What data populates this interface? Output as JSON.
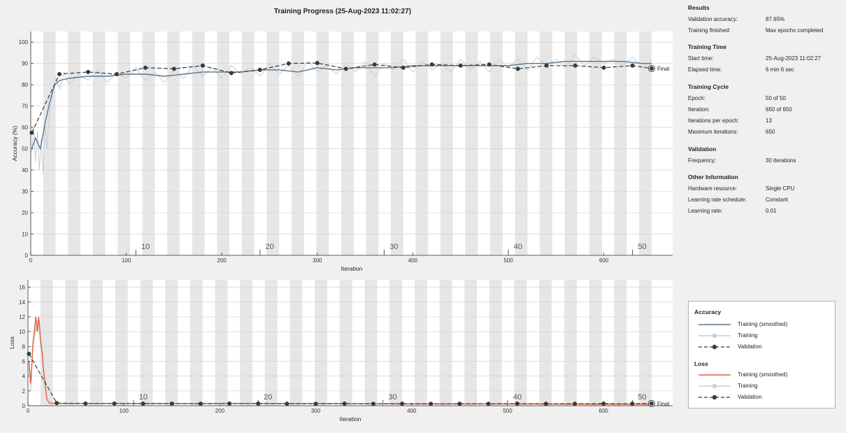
{
  "title": "Training Progress (25-Aug-2023 11:02:27)",
  "info": {
    "sections": [
      {
        "heading": "Results",
        "rows": [
          {
            "label": "Validation accuracy:",
            "value": "87.65%"
          },
          {
            "label": "Training finished:",
            "value": "Max epochs completed"
          }
        ]
      },
      {
        "heading": "Training Time",
        "rows": [
          {
            "label": "Start time:",
            "value": "25-Aug-2023 11:02:27"
          },
          {
            "label": "Elapsed time:",
            "value": "6 min 6 sec"
          }
        ]
      },
      {
        "heading": "Training Cycle",
        "rows": [
          {
            "label": "Epoch:",
            "value": "50 of 50"
          },
          {
            "label": "Iteration:",
            "value": "650 of 650"
          },
          {
            "label": "Iterations per epoch:",
            "value": "13"
          },
          {
            "label": "Maximum iterations:",
            "value": "650"
          }
        ]
      },
      {
        "heading": "Validation",
        "rows": [
          {
            "label": "Frequency:",
            "value": "30 iterations"
          }
        ]
      },
      {
        "heading": "Other Information",
        "rows": [
          {
            "label": "Hardware resource:",
            "value": "Single CPU"
          },
          {
            "label": "Learning rate schedule:",
            "value": "Constant"
          },
          {
            "label": "Learning rate:",
            "value": "0.01"
          }
        ]
      }
    ]
  },
  "legend": {
    "accuracy_title": "Accuracy",
    "loss_title": "Loss",
    "accuracy_items": [
      "Training (smoothed)",
      "Training",
      "Validation"
    ],
    "loss_items": [
      "Training (smoothed)",
      "Training",
      "Validation"
    ]
  },
  "colors": {
    "accuracy_smoothed": "#587790",
    "accuracy_raw": "#c8cdd2",
    "loss_smoothed": "#e0623a",
    "loss_raw": "#cfcfcf",
    "validation": "#3a3a3a",
    "epoch_band": "#e6e6e6"
  },
  "chart_data": [
    {
      "type": "line",
      "xlabel": "Iteration",
      "ylabel": "Accuracy (%)",
      "xlim": [
        0,
        672
      ],
      "ylim": [
        0,
        105
      ],
      "xticks": [
        0,
        100,
        200,
        300,
        400,
        500,
        600
      ],
      "yticks": [
        0,
        10,
        20,
        30,
        40,
        50,
        60,
        70,
        80,
        90,
        100
      ],
      "epoch_labels": [
        {
          "iteration": 123,
          "label": "10"
        },
        {
          "iteration": 253,
          "label": "20"
        },
        {
          "iteration": 383,
          "label": "30"
        },
        {
          "iteration": 513,
          "label": "40"
        },
        {
          "iteration": 643,
          "label": "50"
        }
      ],
      "final_label": "Final",
      "series": [
        {
          "name": "Training (smoothed)",
          "x": [
            1,
            5,
            10,
            15,
            20,
            25,
            30,
            40,
            60,
            80,
            100,
            120,
            140,
            160,
            180,
            200,
            220,
            240,
            260,
            280,
            300,
            320,
            340,
            360,
            380,
            400,
            420,
            440,
            460,
            480,
            500,
            520,
            540,
            560,
            580,
            600,
            620,
            640,
            650
          ],
          "y": [
            50,
            55,
            50,
            62,
            72,
            80,
            82,
            83,
            84,
            84,
            85,
            85,
            84,
            85,
            86,
            86,
            86,
            87,
            87,
            86,
            88,
            87,
            88,
            88,
            88,
            89,
            89,
            89,
            89,
            89,
            89,
            90,
            90,
            91,
            91,
            91,
            91,
            90,
            90
          ]
        },
        {
          "name": "Training",
          "x": [
            1,
            3,
            5,
            7,
            9,
            11,
            13,
            15,
            17,
            20,
            23,
            26,
            30,
            35,
            40,
            50,
            60,
            70,
            80,
            90,
            100,
            110,
            120,
            130,
            140,
            150,
            160,
            170,
            180,
            190,
            200,
            210,
            220,
            230,
            240,
            250,
            260,
            270,
            280,
            290,
            300,
            310,
            320,
            330,
            340,
            350,
            360,
            370,
            380,
            390,
            400,
            410,
            420,
            430,
            440,
            450,
            460,
            470,
            480,
            490,
            500,
            510,
            520,
            530,
            540,
            550,
            560,
            570,
            580,
            590,
            600,
            610,
            620,
            630,
            640,
            650
          ],
          "y": [
            48,
            60,
            44,
            58,
            40,
            55,
            38,
            62,
            50,
            68,
            76,
            84,
            78,
            86,
            80,
            85,
            82,
            87,
            81,
            86,
            83,
            88,
            82,
            86,
            81,
            87,
            83,
            89,
            84,
            88,
            83,
            89,
            85,
            88,
            84,
            90,
            85,
            89,
            84,
            91,
            86,
            89,
            85,
            90,
            86,
            91,
            84,
            90,
            87,
            92,
            86,
            91,
            87,
            90,
            86,
            92,
            87,
            91,
            86,
            92,
            88,
            92,
            87,
            93,
            89,
            92,
            88,
            94,
            89,
            93,
            90,
            92,
            89,
            93,
            88,
            91
          ]
        },
        {
          "name": "Validation",
          "x": [
            1,
            30,
            60,
            90,
            120,
            150,
            180,
            210,
            240,
            270,
            300,
            330,
            360,
            390,
            420,
            450,
            480,
            510,
            540,
            570,
            600,
            630,
            650
          ],
          "y": [
            57.5,
            85,
            86,
            85,
            88,
            87.5,
            89,
            85.5,
            87,
            90,
            90.2,
            87.5,
            89.5,
            88,
            89.5,
            89,
            89.5,
            87.5,
            89,
            89,
            88,
            89,
            87.65
          ]
        }
      ]
    },
    {
      "type": "line",
      "xlabel": "Iteration",
      "ylabel": "Loss",
      "xlim": [
        0,
        672
      ],
      "ylim": [
        0,
        17
      ],
      "xticks": [
        0,
        100,
        200,
        300,
        400,
        500,
        600
      ],
      "yticks": [
        0,
        2,
        4,
        6,
        8,
        10,
        12,
        14,
        16
      ],
      "epoch_labels": [
        {
          "iteration": 123,
          "label": "10"
        },
        {
          "iteration": 253,
          "label": "20"
        },
        {
          "iteration": 383,
          "label": "30"
        },
        {
          "iteration": 513,
          "label": "40"
        },
        {
          "iteration": 643,
          "label": "50"
        }
      ],
      "final_label": "Final",
      "series": [
        {
          "name": "Training (smoothed)",
          "x": [
            1,
            3,
            5,
            7,
            8,
            9,
            10,
            11,
            12,
            13,
            14,
            15,
            16,
            17,
            18,
            19,
            20,
            22,
            25,
            30,
            60,
            100,
            200,
            300,
            400,
            500,
            600,
            650
          ],
          "y": [
            6,
            3,
            8,
            10,
            12,
            11,
            10,
            12,
            11,
            9,
            8,
            7,
            5,
            4,
            3,
            1.5,
            0.8,
            0.4,
            0.3,
            0.3,
            0.3,
            0.3,
            0.3,
            0.3,
            0.25,
            0.25,
            0.2,
            0.2
          ]
        },
        {
          "name": "Training",
          "x": [
            1,
            3,
            5,
            7,
            9,
            11,
            13,
            15,
            17,
            20,
            25,
            30,
            100,
            200,
            300,
            400,
            500,
            600,
            650
          ],
          "y": [
            5,
            2,
            9,
            11,
            10,
            12,
            8,
            6,
            3,
            1,
            0.5,
            0.3,
            0.3,
            0.3,
            0.3,
            0.25,
            0.25,
            0.2,
            0.2
          ]
        },
        {
          "name": "Validation",
          "x": [
            1,
            30,
            60,
            90,
            120,
            150,
            180,
            210,
            240,
            270,
            300,
            330,
            360,
            390,
            420,
            450,
            480,
            510,
            540,
            570,
            600,
            630,
            650
          ],
          "y": [
            7,
            0.35,
            0.3,
            0.3,
            0.28,
            0.28,
            0.27,
            0.3,
            0.28,
            0.27,
            0.26,
            0.28,
            0.26,
            0.27,
            0.26,
            0.26,
            0.26,
            0.28,
            0.26,
            0.27,
            0.28,
            0.27,
            0.3
          ]
        }
      ]
    }
  ]
}
